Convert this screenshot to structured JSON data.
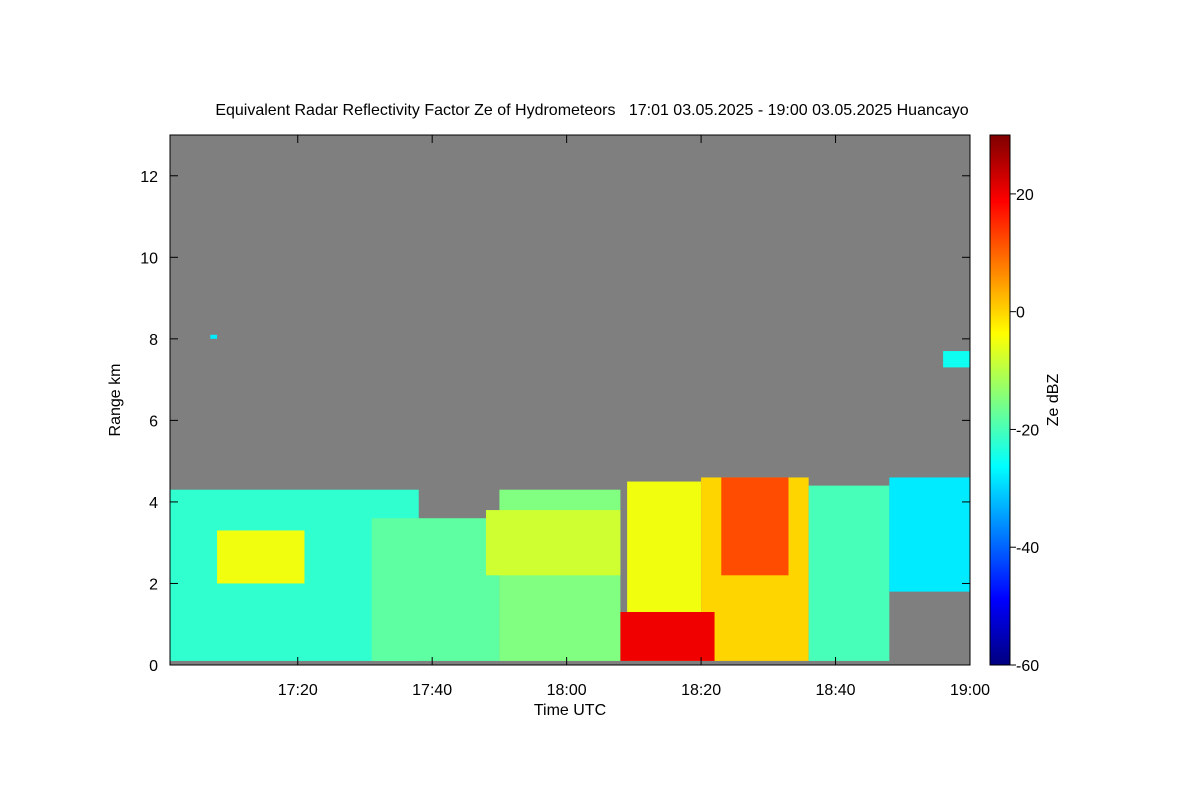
{
  "chart_data": {
    "type": "heatmap",
    "title": "Equivalent Radar Reflectivity Factor Ze of Hydrometeors   17:01 03.05.2025 - 19:00 03.05.2025 Huancayo",
    "xlabel": "Time UTC",
    "ylabel": "Range km",
    "colorbar_label": "Ze dBZ",
    "xlim": [
      "17:01",
      "19:00"
    ],
    "ylim": [
      0,
      13
    ],
    "clim": [
      -60,
      30
    ],
    "x_ticks": [
      "17:20",
      "17:40",
      "18:00",
      "18:20",
      "18:40",
      "19:00"
    ],
    "y_ticks": [
      "0",
      "2",
      "4",
      "6",
      "8",
      "10",
      "12"
    ],
    "colorbar_ticks": [
      "20",
      "0",
      "-20",
      "-40",
      "-60"
    ],
    "colormap": "jet",
    "no_data_color": "#7f7f7f",
    "grid": false,
    "echo_regions": [
      {
        "time_start": "17:01",
        "time_end": "17:38",
        "range_bottom": 0.1,
        "range_top": 4.3,
        "ze": -22
      },
      {
        "time_start": "17:31",
        "time_end": "17:50",
        "range_bottom": 0.1,
        "range_top": 3.6,
        "ze": -18
      },
      {
        "time_start": "17:50",
        "time_end": "18:08",
        "range_bottom": 0.1,
        "range_top": 4.3,
        "ze": -15
      },
      {
        "time_start": "18:09",
        "time_end": "18:20",
        "range_bottom": 0.1,
        "range_top": 4.5,
        "ze": -5
      },
      {
        "time_start": "18:20",
        "time_end": "18:36",
        "range_bottom": 0.1,
        "range_top": 4.6,
        "ze": 0
      },
      {
        "time_start": "18:36",
        "time_end": "18:48",
        "range_bottom": 0.1,
        "range_top": 4.4,
        "ze": -20
      },
      {
        "time_start": "18:48",
        "time_end": "19:00",
        "range_bottom": 1.8,
        "range_top": 4.6,
        "ze": -28
      },
      {
        "time_start": "17:08",
        "time_end": "17:21",
        "range_bottom": 2.0,
        "range_top": 3.3,
        "ze": -5
      },
      {
        "time_start": "17:48",
        "time_end": "18:08",
        "range_bottom": 2.2,
        "range_top": 3.8,
        "ze": -8
      },
      {
        "time_start": "18:23",
        "time_end": "18:33",
        "range_bottom": 2.2,
        "range_top": 4.6,
        "ze": 12
      },
      {
        "time_start": "18:08",
        "time_end": "18:22",
        "range_bottom": 0.1,
        "range_top": 1.3,
        "ze": 20
      },
      {
        "time_start": "18:56",
        "time_end": "19:00",
        "range_bottom": 7.3,
        "range_top": 7.7,
        "ze": -25
      },
      {
        "time_start": "17:07",
        "time_end": "17:08",
        "range_bottom": 8.0,
        "range_top": 8.1,
        "ze": -28
      }
    ]
  }
}
